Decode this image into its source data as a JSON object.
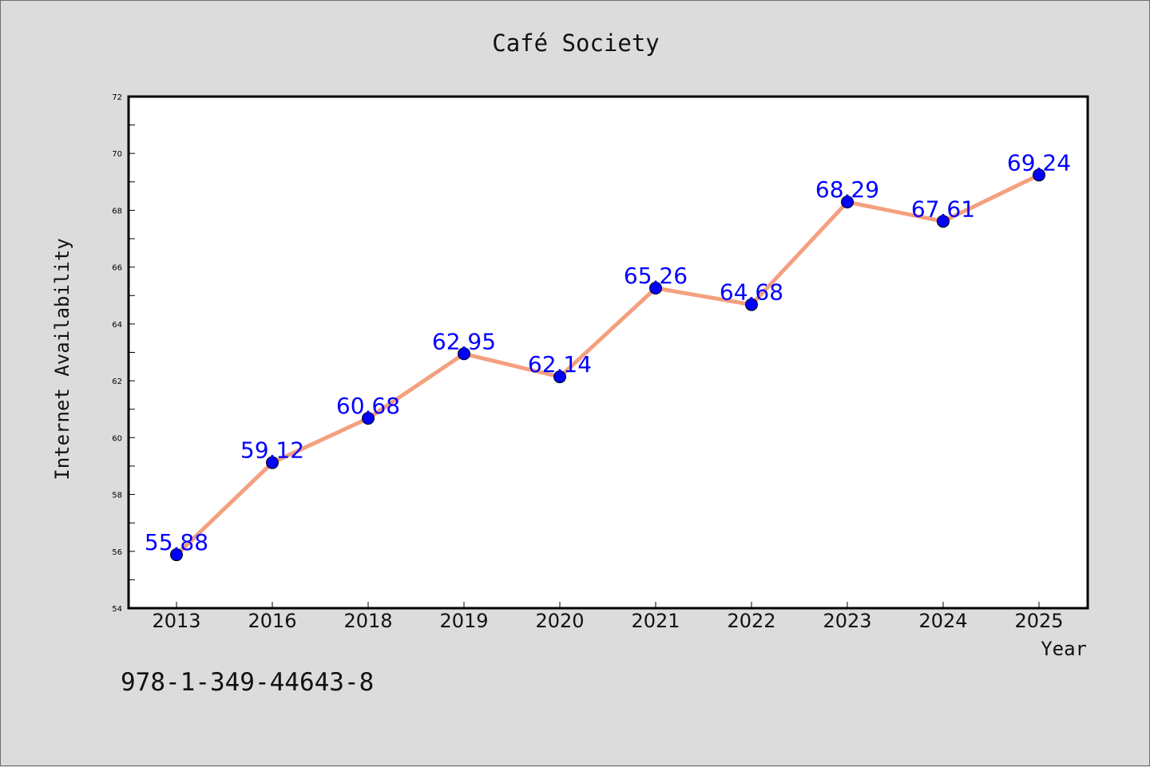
{
  "chart_data": {
    "type": "line",
    "title": "Café Society",
    "xlabel": "Year",
    "ylabel": "Internet Availability",
    "categories": [
      "2013",
      "2016",
      "2018",
      "2019",
      "2020",
      "2021",
      "2022",
      "2023",
      "2024",
      "2025"
    ],
    "series": [
      {
        "values": [
          55.88,
          59.12,
          60.68,
          62.95,
          62.14,
          65.26,
          64.68,
          68.29,
          67.61,
          69.24
        ]
      }
    ],
    "data_labels": [
      "55.88",
      "59.12",
      "60.68",
      "62.95",
      "62.14",
      "65.26",
      "64.68",
      "68.29",
      "67.61",
      "69.24"
    ],
    "ylim": [
      54,
      72
    ],
    "yticks": [
      "54",
      "56",
      "58",
      "60",
      "62",
      "64",
      "66",
      "68",
      "70",
      "72"
    ],
    "grid": false,
    "line_color": "#f4a07f",
    "marker_color": "#0000ff",
    "label_color": "#0000ff",
    "footnote": "978-1-349-44643-8"
  }
}
